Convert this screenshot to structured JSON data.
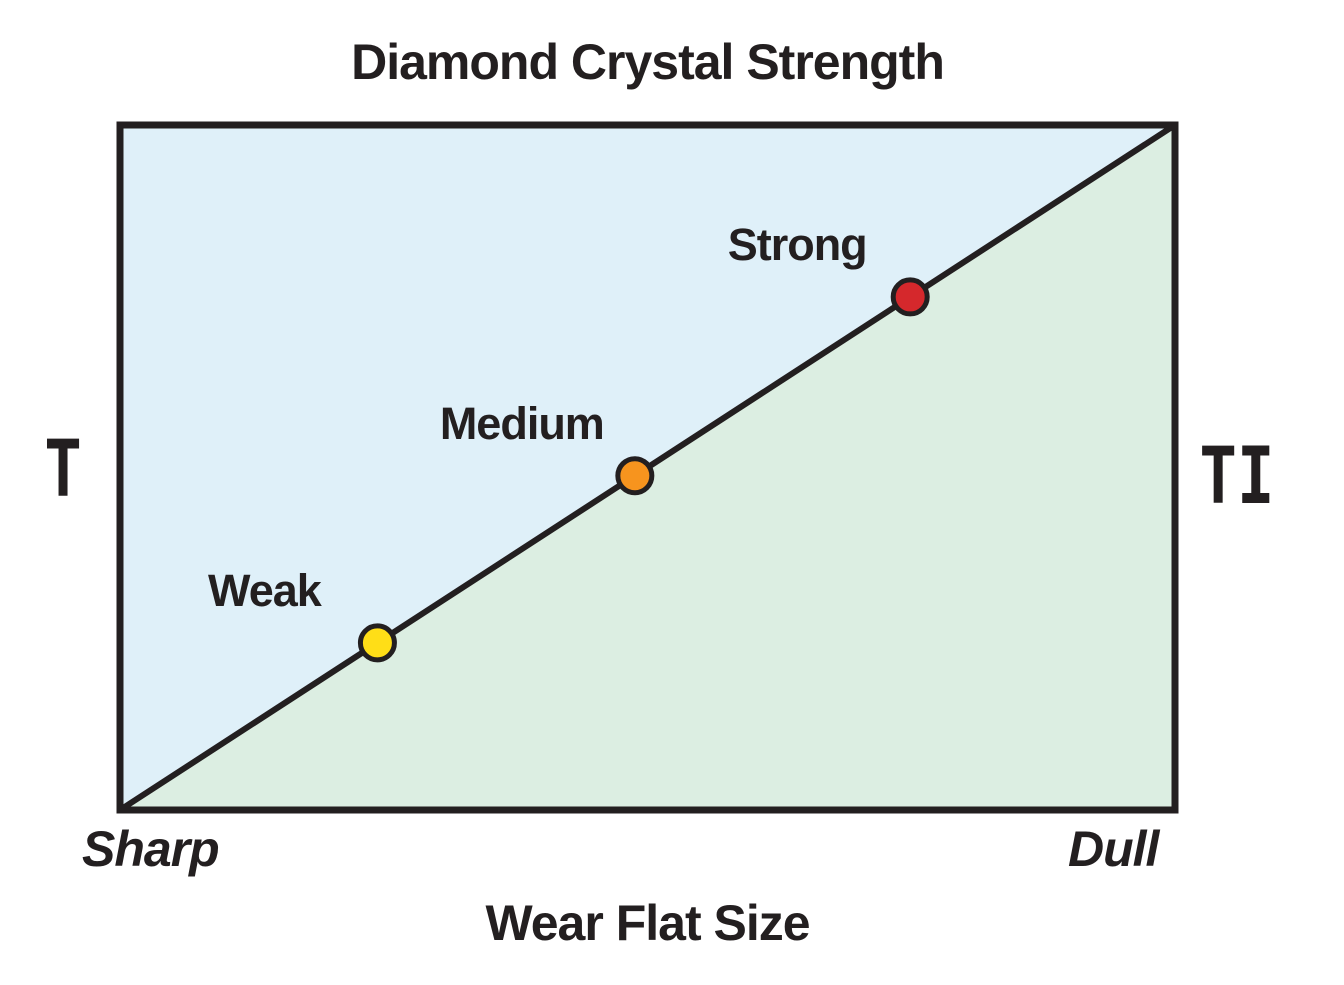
{
  "page": {
    "background_color": "#FFFFFF",
    "text_color": "#231F20"
  },
  "chart_data": {
    "type": "scatter",
    "title": "Diamond Crystal Strength",
    "xlabel": "Wear Flat Size",
    "x_tick_labels": [
      "Sharp",
      "Dull"
    ],
    "left_region_label": "T",
    "right_region_label": "TI",
    "grid": "off",
    "legend": "none",
    "axis_range": [
      0,
      1
    ],
    "regions": [
      {
        "name": "above-diagonal",
        "color": "#DFF0F9"
      },
      {
        "name": "below-diagonal",
        "color": "#DCEEE2"
      }
    ],
    "border_color": "#231F20",
    "diagonal_line": {
      "from": [
        0,
        0
      ],
      "to": [
        1,
        1
      ],
      "color": "#231F20"
    },
    "points": [
      {
        "label": "Weak",
        "x": 0.244,
        "y": 0.244,
        "color": "#FFDE17"
      },
      {
        "label": "Medium",
        "x": 0.488,
        "y": 0.488,
        "color": "#F7941E"
      },
      {
        "label": "Strong",
        "x": 0.749,
        "y": 0.749,
        "color": "#D5282C"
      }
    ]
  }
}
